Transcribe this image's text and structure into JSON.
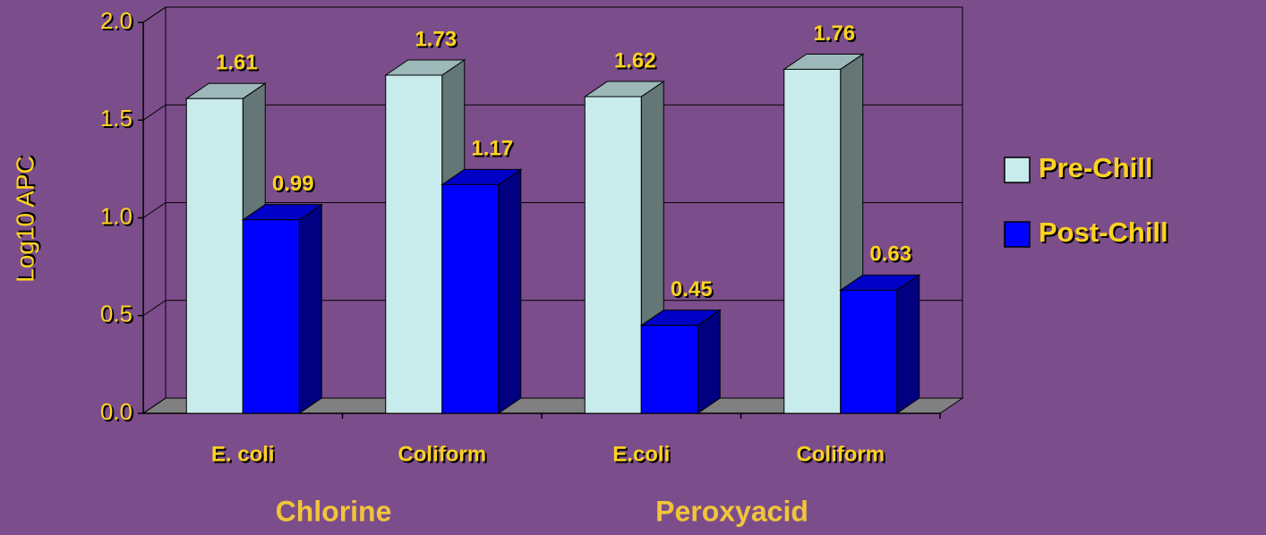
{
  "chart_data": {
    "type": "bar3d",
    "ylabel": "Log10 APC",
    "categories": [
      "E. coli",
      "Coliform",
      "E.coli",
      "Coliform"
    ],
    "group_labels": [
      "Chlorine",
      "Peroxyacid"
    ],
    "series": [
      {
        "name": "Pre-Chill",
        "color": "#c8ecec",
        "values": [
          1.61,
          1.73,
          1.62,
          1.76
        ]
      },
      {
        "name": "Post-Chill",
        "color": "#0000ff",
        "values": [
          0.99,
          1.17,
          0.45,
          0.63
        ]
      }
    ],
    "ylim": [
      0,
      2
    ],
    "yticks": [
      {
        "value": 0,
        "label": "0.0"
      },
      0.5,
      {
        "value": 1,
        "label": "1.0"
      },
      1.5,
      {
        "value": 2,
        "label": "2.0"
      }
    ],
    "grid": true,
    "legend": "right"
  }
}
